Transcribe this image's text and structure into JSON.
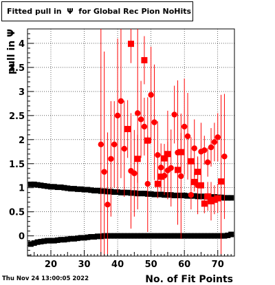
{
  "title": "Fitted pull in  Ψ  for Global Rec Pion NoHits",
  "footer_date": "Thu Nov 24 13:00:05 2022",
  "chart_data": {
    "type": "scatter",
    "title": "Fitted pull in  Ψ  for Global Rec Pion NoHits",
    "xlabel": "No. of Fit Points",
    "ylabel": "pull in  Ψ",
    "xlim": [
      13,
      75
    ],
    "ylim": [
      -0.42,
      4.3
    ],
    "x_ticks": [
      20,
      30,
      40,
      50,
      60,
      70
    ],
    "y_ticks": [
      0,
      0.5,
      1,
      1.5,
      2,
      2.5,
      3,
      3.5,
      4
    ],
    "y_tick_labels": [
      "0",
      "0.5",
      "1",
      "1.5",
      "2",
      "2.5",
      "3",
      "3.5",
      "4"
    ],
    "grid": true,
    "colors": {
      "sigma": "#ff0000",
      "mean": "#000000",
      "frame": "#000000"
    },
    "series": [
      {
        "name": "",
        "marker": "square",
        "color": "#000000",
        "points": [
          [
            14,
            1.07
          ],
          [
            15,
            1.07
          ],
          [
            16,
            1.06
          ],
          [
            17,
            1.05
          ],
          [
            18,
            1.04
          ],
          [
            19,
            1.03
          ],
          [
            20,
            1.02
          ],
          [
            21,
            1.02
          ],
          [
            22,
            1.01
          ],
          [
            23,
            1.01
          ],
          [
            24,
            1.0
          ],
          [
            25,
            0.99
          ],
          [
            26,
            0.98
          ],
          [
            27,
            0.98
          ],
          [
            28,
            0.97
          ],
          [
            29,
            0.97
          ],
          [
            30,
            0.96
          ],
          [
            31,
            0.96
          ],
          [
            32,
            0.95
          ],
          [
            33,
            0.94
          ],
          [
            34,
            0.94
          ],
          [
            35,
            0.93
          ],
          [
            36,
            0.93
          ],
          [
            37,
            0.92
          ],
          [
            38,
            0.92
          ],
          [
            39,
            0.91
          ],
          [
            40,
            0.91
          ],
          [
            41,
            0.9
          ],
          [
            42,
            0.9
          ],
          [
            43,
            0.9
          ],
          [
            44,
            0.89
          ],
          [
            45,
            0.89
          ],
          [
            46,
            0.88
          ],
          [
            47,
            0.88
          ],
          [
            48,
            0.88
          ],
          [
            49,
            0.87
          ],
          [
            50,
            0.87
          ],
          [
            51,
            0.86
          ],
          [
            52,
            0.86
          ],
          [
            53,
            0.86
          ],
          [
            54,
            0.85
          ],
          [
            55,
            0.85
          ],
          [
            56,
            0.85
          ],
          [
            57,
            0.84
          ],
          [
            58,
            0.84
          ],
          [
            59,
            0.84
          ],
          [
            60,
            0.84
          ],
          [
            61,
            0.83
          ],
          [
            62,
            0.83
          ],
          [
            63,
            0.83
          ],
          [
            64,
            0.82
          ],
          [
            65,
            0.82
          ],
          [
            66,
            0.82
          ],
          [
            67,
            0.81
          ],
          [
            68,
            0.81
          ],
          [
            69,
            0.81
          ],
          [
            70,
            0.8
          ],
          [
            71,
            0.8
          ],
          [
            72,
            0.79
          ],
          [
            73,
            0.79
          ],
          [
            74,
            0.79
          ]
        ]
      },
      {
        "name": "",
        "marker": "square",
        "color": "#000000",
        "points": [
          [
            14,
            -0.17
          ],
          [
            15,
            -0.15
          ],
          [
            16,
            -0.13
          ],
          [
            17,
            -0.12
          ],
          [
            18,
            -0.11
          ],
          [
            19,
            -0.1
          ],
          [
            20,
            -0.1
          ],
          [
            21,
            -0.1
          ],
          [
            22,
            -0.09
          ],
          [
            23,
            -0.08
          ],
          [
            24,
            -0.08
          ],
          [
            25,
            -0.07
          ],
          [
            26,
            -0.06
          ],
          [
            27,
            -0.06
          ],
          [
            28,
            -0.05
          ],
          [
            29,
            -0.04
          ],
          [
            30,
            -0.04
          ],
          [
            31,
            -0.03
          ],
          [
            32,
            -0.02
          ],
          [
            33,
            -0.02
          ],
          [
            34,
            -0.01
          ],
          [
            35,
            -0.01
          ],
          [
            36,
            0.0
          ],
          [
            37,
            0.0
          ],
          [
            38,
            0.0
          ],
          [
            39,
            0.0
          ],
          [
            40,
            0.0
          ],
          [
            41,
            0.0
          ],
          [
            42,
            0.0
          ],
          [
            43,
            0.0
          ],
          [
            44,
            0.0
          ],
          [
            45,
            0.0
          ],
          [
            46,
            0.0
          ],
          [
            47,
            0.0
          ],
          [
            48,
            0.0
          ],
          [
            49,
            0.0
          ],
          [
            50,
            0.0
          ],
          [
            51,
            0.0
          ],
          [
            52,
            0.0
          ],
          [
            53,
            0.0
          ],
          [
            54,
            0.0
          ],
          [
            55,
            0.0
          ],
          [
            56,
            0.0
          ],
          [
            57,
            0.0
          ],
          [
            58,
            0.0
          ],
          [
            59,
            0.0
          ],
          [
            60,
            0.0
          ],
          [
            61,
            0.0
          ],
          [
            62,
            0.0
          ],
          [
            63,
            0.0
          ],
          [
            64,
            0.0
          ],
          [
            65,
            0.0
          ],
          [
            66,
            0.0
          ],
          [
            67,
            0.0
          ],
          [
            68,
            0.0
          ],
          [
            69,
            0.0
          ],
          [
            70,
            0.0
          ],
          [
            71,
            0.0
          ],
          [
            72,
            0.0
          ],
          [
            73,
            0.01
          ],
          [
            74,
            0.03
          ]
        ]
      },
      {
        "name": "",
        "marker": "circle",
        "color": "#ff0000",
        "points": [
          [
            35,
            1.9,
            3.0
          ],
          [
            36,
            1.33,
            2.5
          ],
          [
            37,
            0.65,
            1.5
          ],
          [
            38,
            1.6,
            1.2
          ],
          [
            39,
            1.9,
            0.9
          ],
          [
            40,
            2.5,
            1.6
          ],
          [
            41,
            2.8,
            1.6
          ],
          [
            42,
            1.81,
            1.0
          ],
          [
            44,
            1.35,
            1.2
          ],
          [
            45,
            1.3,
            0.9
          ],
          [
            46,
            2.55,
            2.0
          ],
          [
            47,
            2.42,
            0.8
          ],
          [
            48,
            2.27,
            0.6
          ],
          [
            49,
            1.08,
            1.0
          ],
          [
            50,
            2.93,
            1.0
          ],
          [
            51,
            2.36,
            1.2
          ],
          [
            52,
            1.68,
            0.7
          ],
          [
            53,
            1.42,
            0.5
          ],
          [
            54,
            1.25,
            0.4
          ],
          [
            55,
            1.36,
            0.6
          ],
          [
            56,
            1.41,
            0.8
          ],
          [
            57,
            2.52,
            0.6
          ],
          [
            58,
            1.73,
            1.5
          ],
          [
            59,
            1.24,
            1.3
          ],
          [
            60,
            2.27,
            1.0
          ],
          [
            61,
            2.07,
            0.9
          ],
          [
            62,
            0.85,
            0.3
          ],
          [
            63,
            1.82,
            0.6
          ],
          [
            64,
            1.05,
            0.6
          ],
          [
            65,
            1.75,
            0.6
          ],
          [
            66,
            1.78,
            0.3
          ],
          [
            67,
            1.53,
            0.3
          ],
          [
            68,
            1.84,
            0.4
          ],
          [
            69,
            1.95,
            0.4
          ],
          [
            70,
            2.05,
            0.5
          ],
          [
            72,
            1.65,
            1.3
          ]
        ]
      },
      {
        "name": "",
        "marker": "square",
        "color": "#ff0000",
        "points": [
          [
            43,
            2.22,
            0.6
          ],
          [
            44,
            3.99,
            0.4
          ],
          [
            46,
            1.6,
            0.5
          ],
          [
            48,
            3.65,
            0.5
          ],
          [
            49,
            1.98,
            0.9
          ],
          [
            52,
            1.08,
            0.3
          ],
          [
            53,
            1.23,
            0.2
          ],
          [
            54,
            1.61,
            0.3
          ],
          [
            55,
            1.7,
            0.9
          ],
          [
            58,
            1.37,
            0.3
          ],
          [
            59,
            1.74,
            0.4
          ],
          [
            62,
            1.55,
            0.5
          ],
          [
            63,
            1.12,
            0.2
          ],
          [
            64,
            1.33,
            0.3
          ],
          [
            65,
            1.05,
            0.3
          ],
          [
            66,
            0.67,
            0.2
          ],
          [
            67,
            0.82,
            0.3
          ],
          [
            68,
            0.72,
            0.4
          ],
          [
            69,
            0.75,
            0.3
          ],
          [
            70,
            0.78,
            0.3
          ],
          [
            71,
            1.13,
            1.8
          ]
        ]
      }
    ]
  }
}
